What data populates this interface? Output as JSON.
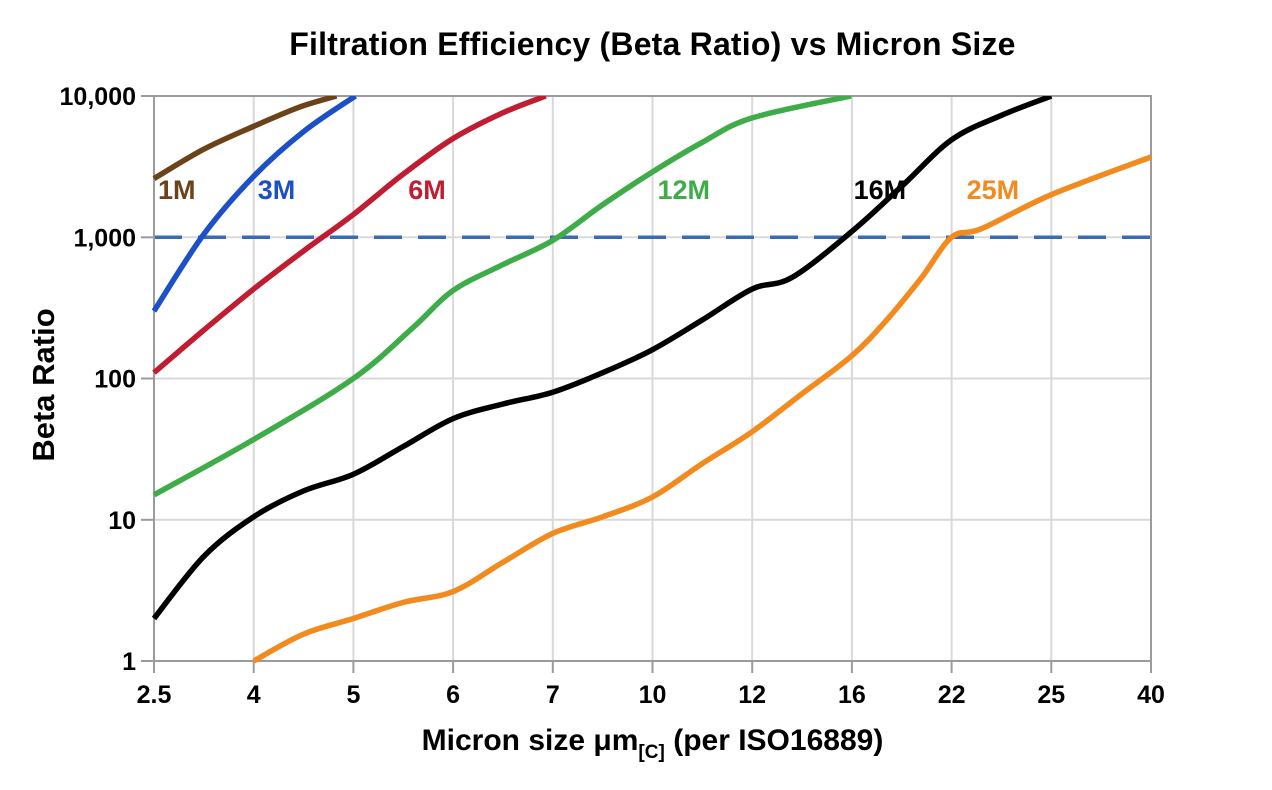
{
  "x_axis": {
    "label_main": "Micron size μm",
    "label_subscript": "[C]",
    "label_suffix": "(per ISO16889)"
  },
  "y_axis": {
    "label": "Beta Ratio",
    "tick_labels": [
      "1",
      "10",
      "100",
      "1,000",
      "10,000"
    ]
  },
  "chart_data": {
    "type": "line",
    "title": "Filtration Efficiency (Beta Ratio) vs Micron Size",
    "xlabel": "Micron size μm[C] (per ISO16889)",
    "ylabel": "Beta Ratio",
    "x_scale": "categorical",
    "y_scale": "log",
    "ylim": [
      1,
      10000
    ],
    "grid": true,
    "legend": "inline-labels",
    "x_ticks": [
      "2.5",
      "4",
      "5",
      "6",
      "7",
      "10",
      "12",
      "16",
      "22",
      "25",
      "40"
    ],
    "x_tick_values": [
      2.5,
      4,
      5,
      6,
      7,
      10,
      12,
      16,
      22,
      25,
      40
    ],
    "y_ticks": [
      "1",
      "10",
      "100",
      "1,000",
      "10,000"
    ],
    "y_tick_values": [
      1,
      10,
      100,
      1000,
      10000
    ],
    "reference_line": {
      "value": 1000,
      "style": "dashed",
      "color": "#3A6CB4"
    },
    "axis_color": "#9B9B9B",
    "grid_color": "#D9D9D9",
    "series": [
      {
        "name": "1M",
        "color": "#6C4318",
        "label": {
          "micron": 2.56,
          "beta": 2160
        },
        "points": [
          [
            2.5,
            2600
          ],
          [
            3.25,
            4200
          ],
          [
            4,
            6100
          ],
          [
            4.45,
            8300
          ],
          [
            4.83,
            10000
          ]
        ]
      },
      {
        "name": "3M",
        "color": "#1B50C6",
        "label": {
          "micron": 4.04,
          "beta": 2160
        },
        "points": [
          [
            2.5,
            300
          ],
          [
            3.25,
            1050
          ],
          [
            4,
            2700
          ],
          [
            4.5,
            5600
          ],
          [
            5.02,
            10000
          ]
        ]
      },
      {
        "name": "6M",
        "color": "#C01D33",
        "label": {
          "micron": 5.55,
          "beta": 2160
        },
        "points": [
          [
            2.5,
            110
          ],
          [
            3.25,
            220
          ],
          [
            4,
            430
          ],
          [
            4.5,
            800
          ],
          [
            5,
            1450
          ],
          [
            5.5,
            2800
          ],
          [
            6,
            5000
          ],
          [
            6.5,
            7600
          ],
          [
            6.93,
            10000
          ]
        ]
      },
      {
        "name": "12M",
        "color": "#3EAC49",
        "label": {
          "micron": 10.1,
          "beta": 2160
        },
        "points": [
          [
            2.5,
            15
          ],
          [
            4,
            37
          ],
          [
            5,
            100
          ],
          [
            5.6,
            230
          ],
          [
            6,
            420
          ],
          [
            6.5,
            640
          ],
          [
            7,
            950
          ],
          [
            8.5,
            1700
          ],
          [
            10,
            2900
          ],
          [
            11,
            4700
          ],
          [
            12,
            7000
          ],
          [
            15.97,
            10000
          ]
        ]
      },
      {
        "name": "16M",
        "color": "#000000",
        "label": {
          "micron": 16.1,
          "beta": 2160
        },
        "points": [
          [
            2.5,
            2
          ],
          [
            3.25,
            5.5
          ],
          [
            4,
            10.5
          ],
          [
            4.5,
            16
          ],
          [
            5,
            21
          ],
          [
            5.5,
            33
          ],
          [
            6,
            52
          ],
          [
            6.5,
            66
          ],
          [
            7,
            80
          ],
          [
            8.5,
            110
          ],
          [
            10,
            160
          ],
          [
            11,
            260
          ],
          [
            12,
            430
          ],
          [
            13.6,
            520
          ],
          [
            16,
            1100
          ],
          [
            19,
            2300
          ],
          [
            22,
            4900
          ],
          [
            23.5,
            7300
          ],
          [
            25,
            10000
          ]
        ]
      },
      {
        "name": "25M",
        "color": "#F28A1E",
        "label": {
          "micron": 22.45,
          "beta": 2160
        },
        "points": [
          [
            4,
            1
          ],
          [
            4.5,
            1.55
          ],
          [
            5,
            2
          ],
          [
            5.5,
            2.6
          ],
          [
            6,
            3.1
          ],
          [
            6.5,
            5
          ],
          [
            7,
            8
          ],
          [
            8.5,
            10.5
          ],
          [
            10,
            14.5
          ],
          [
            11,
            25
          ],
          [
            12,
            42
          ],
          [
            14,
            78
          ],
          [
            16,
            145
          ],
          [
            18.1,
            260
          ],
          [
            20.2,
            520
          ],
          [
            22,
            1000
          ],
          [
            22.9,
            1150
          ],
          [
            25,
            2000
          ],
          [
            40,
            3700
          ]
        ]
      }
    ]
  }
}
